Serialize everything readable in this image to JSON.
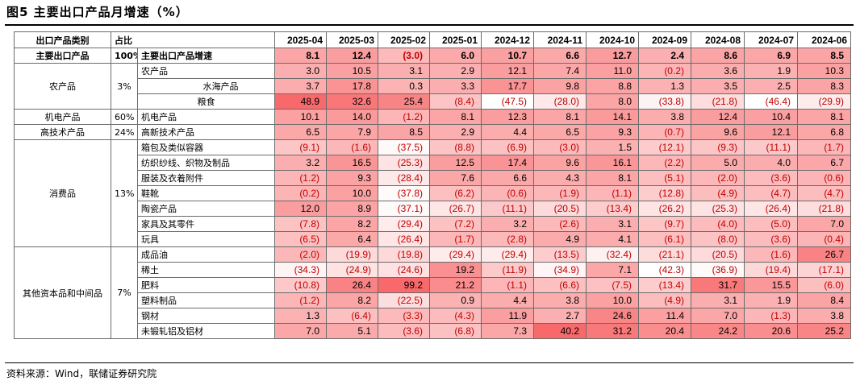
{
  "title": "图5  主要出口产品月增速（%）",
  "header": {
    "category": "出口产品类别",
    "share": "占比",
    "months": [
      "2025-04",
      "2025-03",
      "2025-02",
      "2025-01",
      "2024-12",
      "2024-11",
      "2024-10",
      "2024-09",
      "2024-08",
      "2024-07",
      "2024-06"
    ]
  },
  "rows": [
    {
      "cat": "主要出口产品",
      "span": 1,
      "share": "100%",
      "item": "主要出口产品增速",
      "align": "left",
      "main": true,
      "values": [
        "8.1",
        "12.4",
        "(3.0)",
        "6.0",
        "10.7",
        "6.6",
        "12.7",
        "2.4",
        "8.6",
        "6.9",
        "8.5"
      ],
      "nums": [
        8.1,
        12.4,
        -3.0,
        6.0,
        10.7,
        6.6,
        12.7,
        2.4,
        8.6,
        6.9,
        8.5
      ]
    },
    {
      "cat": "农产品",
      "span": 3,
      "share": "3%",
      "item": "农产品",
      "align": "left",
      "values": [
        "3.0",
        "10.5",
        "3.1",
        "2.9",
        "12.1",
        "7.4",
        "11.0",
        "(0.2)",
        "3.6",
        "1.9",
        "10.3"
      ],
      "nums": [
        3.0,
        10.5,
        3.1,
        2.9,
        12.1,
        7.4,
        11.0,
        -0.2,
        3.6,
        1.9,
        10.3
      ]
    },
    {
      "item": "水海产品",
      "align": "indent-mid",
      "values": [
        "3.7",
        "17.8",
        "0.3",
        "3.3",
        "17.7",
        "9.8",
        "8.8",
        "1.3",
        "3.5",
        "2.5",
        "8.3"
      ],
      "nums": [
        3.7,
        17.8,
        0.3,
        3.3,
        17.7,
        9.8,
        8.8,
        1.3,
        3.5,
        2.5,
        8.3
      ]
    },
    {
      "item": "粮食",
      "align": "indent-center",
      "values": [
        "48.9",
        "32.6",
        "25.4",
        "(8.4)",
        "(47.5)",
        "(28.0)",
        "8.0",
        "(33.8)",
        "(21.8)",
        "(46.4)",
        "(29.9)"
      ],
      "nums": [
        48.9,
        32.6,
        25.4,
        -8.4,
        -47.5,
        -28.0,
        8.0,
        -33.8,
        -21.8,
        -46.4,
        -29.9
      ]
    },
    {
      "cat": "机电产品",
      "span": 1,
      "share": "60%",
      "item": "机电产品",
      "align": "left",
      "values": [
        "10.1",
        "14.0",
        "(1.2)",
        "8.1",
        "12.3",
        "8.1",
        "14.1",
        "3.8",
        "12.4",
        "10.4",
        "8.1"
      ],
      "nums": [
        10.1,
        14.0,
        -1.2,
        8.1,
        12.3,
        8.1,
        14.1,
        3.8,
        12.4,
        10.4,
        8.1
      ]
    },
    {
      "cat": "高技术产品",
      "span": 1,
      "share": "24%",
      "item": "高新技术产品",
      "align": "left",
      "values": [
        "6.5",
        "7.9",
        "8.5",
        "2.9",
        "4.4",
        "6.5",
        "9.3",
        "(0.7)",
        "9.6",
        "12.1",
        "6.8"
      ],
      "nums": [
        6.5,
        7.9,
        8.5,
        2.9,
        4.4,
        6.5,
        9.3,
        -0.7,
        9.6,
        12.1,
        6.8
      ]
    },
    {
      "cat": "消费品",
      "span": 7,
      "share": "13%",
      "item": "箱包及类似容器",
      "align": "left",
      "values": [
        "(9.1)",
        "(1.6)",
        "(37.5)",
        "(8.8)",
        "(6.9)",
        "(3.0)",
        "1.5",
        "(12.1)",
        "(9.3)",
        "(11.1)",
        "(1.7)"
      ],
      "nums": [
        -9.1,
        -1.6,
        -37.5,
        -8.8,
        -6.9,
        -3.0,
        1.5,
        -12.1,
        -9.3,
        -11.1,
        -1.7
      ]
    },
    {
      "item": "纺织纱线、织物及制品",
      "align": "left",
      "values": [
        "3.2",
        "16.5",
        "(25.3)",
        "12.5",
        "17.4",
        "9.6",
        "16.1",
        "(2.2)",
        "5.0",
        "4.0",
        "6.7"
      ],
      "nums": [
        3.2,
        16.5,
        -25.3,
        12.5,
        17.4,
        9.6,
        16.1,
        -2.2,
        5.0,
        4.0,
        6.7
      ]
    },
    {
      "item": "服装及衣着附件",
      "align": "left",
      "values": [
        "(1.2)",
        "9.3",
        "(28.4)",
        "7.6",
        "6.6",
        "4.3",
        "8.1",
        "(5.1)",
        "(2.0)",
        "(3.6)",
        "(0.6)"
      ],
      "nums": [
        -1.2,
        9.3,
        -28.4,
        7.6,
        6.6,
        4.3,
        8.1,
        -5.1,
        -2.0,
        -3.6,
        -0.6
      ]
    },
    {
      "item": "鞋靴",
      "align": "left",
      "values": [
        "(0.2)",
        "10.0",
        "(37.8)",
        "(6.2)",
        "(0.6)",
        "(1.9)",
        "(1.1)",
        "(12.8)",
        "(4.9)",
        "(4.7)",
        "(4.7)"
      ],
      "nums": [
        -0.2,
        10.0,
        -37.8,
        -6.2,
        -0.6,
        -1.9,
        -1.1,
        -12.8,
        -4.9,
        -4.7,
        -4.7
      ]
    },
    {
      "item": "陶瓷产品",
      "align": "left",
      "values": [
        "12.0",
        "8.9",
        "(37.1)",
        "(26.7)",
        "(11.1)",
        "(20.5)",
        "(13.4)",
        "(26.2)",
        "(25.3)",
        "(26.4)",
        "(21.8)"
      ],
      "nums": [
        12.0,
        8.9,
        -37.1,
        -26.7,
        -11.1,
        -20.5,
        -13.4,
        -26.2,
        -25.3,
        -26.4,
        -21.8
      ]
    },
    {
      "item": "家具及其零件",
      "align": "left",
      "values": [
        "(7.8)",
        "8.2",
        "(29.4)",
        "(7.2)",
        "3.2",
        "(2.6)",
        "3.1",
        "(9.7)",
        "(4.0)",
        "(5.0)",
        "7.0"
      ],
      "nums": [
        -7.8,
        8.2,
        -29.4,
        -7.2,
        3.2,
        -2.6,
        3.1,
        -9.7,
        -4.0,
        -5.0,
        7.0
      ]
    },
    {
      "item": "玩具",
      "align": "left",
      "values": [
        "(6.5)",
        "6.4",
        "(26.4)",
        "(1.7)",
        "(2.8)",
        "4.9",
        "4.1",
        "(6.1)",
        "(8.0)",
        "(3.6)",
        "(0.4)"
      ],
      "nums": [
        -6.5,
        6.4,
        -26.4,
        -1.7,
        -2.8,
        4.9,
        4.1,
        -6.1,
        -8.0,
        -3.6,
        -0.4
      ]
    },
    {
      "cat": "其他资本品和中间品",
      "span": 6,
      "share": "7%",
      "item": "成品油",
      "align": "left",
      "values": [
        "(2.0)",
        "(19.9)",
        "(19.8)",
        "(29.4)",
        "(29.4)",
        "(13.5)",
        "(32.4)",
        "(21.1)",
        "(20.5)",
        "(1.6)",
        "26.7"
      ],
      "nums": [
        -2.0,
        -19.9,
        -19.8,
        -29.4,
        -29.4,
        -13.5,
        -32.4,
        -21.1,
        -20.5,
        -1.6,
        26.7
      ]
    },
    {
      "item": "稀土",
      "align": "left",
      "values": [
        "(34.3)",
        "(24.9)",
        "(24.6)",
        "19.2",
        "(11.9)",
        "(34.9)",
        "7.1",
        "(42.3)",
        "(36.9)",
        "(19.4)",
        "(17.1)"
      ],
      "nums": [
        -34.3,
        -24.9,
        -24.6,
        19.2,
        -11.9,
        -34.9,
        7.1,
        -42.3,
        -36.9,
        -19.4,
        -17.1
      ]
    },
    {
      "item": "肥料",
      "align": "left",
      "values": [
        "(10.8)",
        "26.4",
        "99.2",
        "21.2",
        "(1.1)",
        "(6.6)",
        "(7.5)",
        "(13.4)",
        "31.7",
        "15.5",
        "(6.0)"
      ],
      "nums": [
        -10.8,
        26.4,
        99.2,
        21.2,
        -1.1,
        -6.6,
        -7.5,
        -13.4,
        31.7,
        15.5,
        -6.0
      ]
    },
    {
      "item": "塑料制品",
      "align": "left",
      "values": [
        "(1.2)",
        "8.2",
        "(22.5)",
        "0.9",
        "4.4",
        "3.8",
        "10.0",
        "(4.9)",
        "3.1",
        "1.9",
        "8.4"
      ],
      "nums": [
        -1.2,
        8.2,
        -22.5,
        0.9,
        4.4,
        3.8,
        10.0,
        -4.9,
        3.1,
        1.9,
        8.4
      ]
    },
    {
      "item": "钢材",
      "align": "left",
      "values": [
        "1.3",
        "(6.4)",
        "(3.3)",
        "(4.3)",
        "11.9",
        "2.7",
        "24.6",
        "11.4",
        "7.0",
        "(1.3)",
        "3.8"
      ],
      "nums": [
        1.3,
        -6.4,
        -3.3,
        -4.3,
        11.9,
        2.7,
        24.6,
        11.4,
        7.0,
        -1.3,
        3.8
      ]
    },
    {
      "item": "未锻轧铝及铝材",
      "align": "left",
      "values": [
        "7.0",
        "5.1",
        "(3.6)",
        "(6.8)",
        "7.3",
        "40.2",
        "31.2",
        "20.4",
        "24.2",
        "20.6",
        "25.2"
      ],
      "nums": [
        7.0,
        5.1,
        -3.6,
        -6.8,
        7.3,
        40.2,
        31.2,
        20.4,
        24.2,
        20.6,
        25.2
      ]
    }
  ],
  "colors": {
    "heat_low": "#ffffff",
    "heat_high": "#f8696b",
    "negative_text": "#c00000"
  },
  "source": "资料来源：Wind，联储证券研究院"
}
